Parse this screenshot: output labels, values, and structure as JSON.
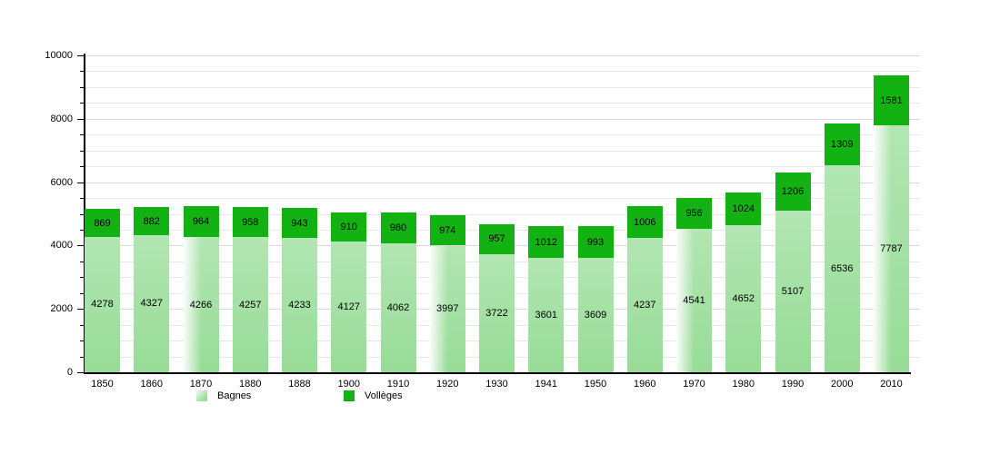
{
  "chart_data": {
    "type": "bar",
    "stacked": true,
    "title": "",
    "xlabel": "",
    "ylabel": "",
    "categories": [
      "1850",
      "1860",
      "1870",
      "1880",
      "1888",
      "1900",
      "1910",
      "1920",
      "1930",
      "1941",
      "1950",
      "1960",
      "1970",
      "1980",
      "1990",
      "2000",
      "2010"
    ],
    "series": [
      {
        "name": "Bagnes",
        "color": "#9bdf9b",
        "values": [
          4278,
          4327,
          4266,
          4257,
          4233,
          4127,
          4062,
          3997,
          3722,
          3601,
          3609,
          4237,
          4541,
          4652,
          5107,
          6536,
          7787
        ]
      },
      {
        "name": "Vollèges",
        "color": "#12b212",
        "values": [
          869,
          882,
          964,
          958,
          943,
          910,
          980,
          974,
          957,
          1012,
          993,
          1006,
          956,
          1024,
          1206,
          1309,
          1581
        ]
      }
    ],
    "ylim": [
      0,
      10000
    ],
    "ytick_major_step": 2000,
    "ytick_minor_step": 500,
    "ytick_labels": [
      "0",
      "2000",
      "4000",
      "6000",
      "8000",
      "10000"
    ],
    "grid": "horizontal gridlines every 500 units, light gray, behind bars",
    "legend_position": "below x-axis, bottom-left",
    "value_labels": "black numbers centered inside each bar segment"
  },
  "legend": {
    "items": [
      {
        "label": "Bagnes",
        "color": "#9bdf9b"
      },
      {
        "label": "Vollèges",
        "color": "#12b212"
      }
    ]
  }
}
